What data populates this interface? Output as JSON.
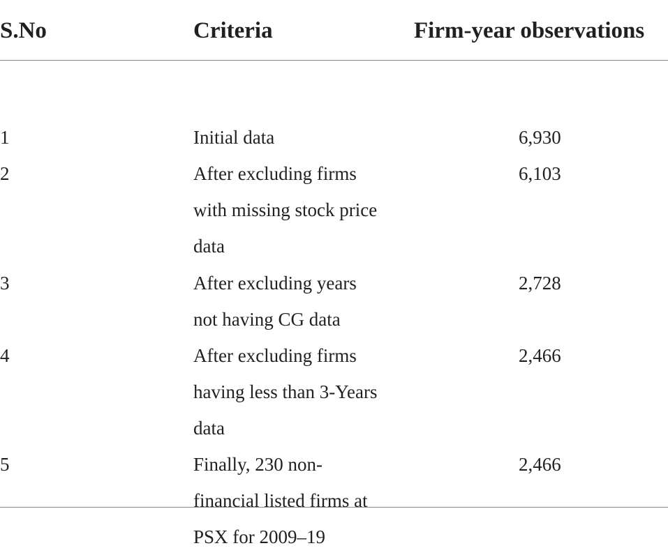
{
  "table": {
    "headers": {
      "sno": "S.No",
      "criteria": "Criteria",
      "observations": "Firm-year observations"
    },
    "rows": [
      {
        "sno": "1",
        "criteria_lines": [
          "Initial data"
        ],
        "observations": "6,930"
      },
      {
        "sno": "2",
        "criteria_lines": [
          "After excluding firms",
          "with missing stock price",
          "data"
        ],
        "observations": "6,103"
      },
      {
        "sno": "3",
        "criteria_lines": [
          "After excluding years",
          "not having CG data"
        ],
        "observations": "2,728"
      },
      {
        "sno": "4",
        "criteria_lines": [
          "After excluding firms",
          "having less than 3-Years",
          "data"
        ],
        "observations": "2,466"
      },
      {
        "sno": "5",
        "criteria_lines": [
          "Finally, 230 non-",
          "financial listed firms at",
          "PSX for 2009–19"
        ],
        "observations": "2,466"
      }
    ]
  }
}
